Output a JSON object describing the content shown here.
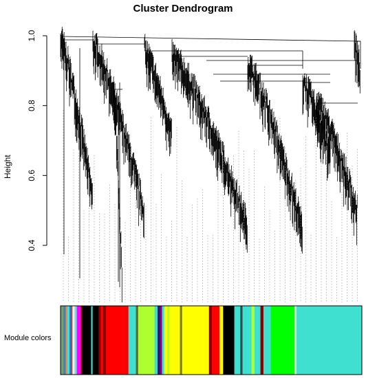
{
  "title": "Cluster Dendrogram",
  "y_axis": {
    "label": "Height",
    "range": [
      0.3,
      1.0
    ],
    "ticks": [
      {
        "value": 0.4,
        "label": "0.4"
      },
      {
        "value": 0.6,
        "label": "0.6"
      },
      {
        "value": 0.8,
        "label": "0.8"
      },
      {
        "value": 1.0,
        "label": "1.0"
      }
    ]
  },
  "color_bar": {
    "label": "Module colors",
    "segments": [
      {
        "color": "#8c8c8c",
        "width": 2
      },
      {
        "color": "#6aa84f",
        "width": 2
      },
      {
        "color": "#4682b4",
        "width": 3
      },
      {
        "color": "#ff7f50",
        "width": 2
      },
      {
        "color": "#40e0d0",
        "width": 3
      },
      {
        "color": "#4169e1",
        "width": 2
      },
      {
        "color": "#a0522d",
        "width": 2
      },
      {
        "color": "#ffffff",
        "width": 2
      },
      {
        "color": "#d3d3d3",
        "width": 2
      },
      {
        "color": "#40e0d0",
        "width": 2
      },
      {
        "color": "#ff00ff",
        "width": 5
      },
      {
        "color": "#8b0000",
        "width": 2
      },
      {
        "color": "#000000",
        "width": 12
      },
      {
        "color": "#40e0d0",
        "width": 2
      },
      {
        "color": "#000000",
        "width": 8
      },
      {
        "color": "#8b0000",
        "width": 3
      },
      {
        "color": "#ff0000",
        "width": 3
      },
      {
        "color": "#8b0000",
        "width": 4
      },
      {
        "color": "#ff0000",
        "width": 30
      },
      {
        "color": "#40e0d0",
        "width": 10
      },
      {
        "color": "#556b2f",
        "width": 3
      },
      {
        "color": "#adff2f",
        "width": 22
      },
      {
        "color": "#40e0d0",
        "width": 4
      },
      {
        "color": "#191970",
        "width": 3
      },
      {
        "color": "#800080",
        "width": 3
      },
      {
        "color": "#40e0d0",
        "width": 3
      },
      {
        "color": "#ffff00",
        "width": 4
      },
      {
        "color": "#adff2f",
        "width": 3
      },
      {
        "color": "#ffff00",
        "width": 14
      },
      {
        "color": "#808000",
        "width": 3
      },
      {
        "color": "#ffff00",
        "width": 36
      },
      {
        "color": "#8b0000",
        "width": 4
      },
      {
        "color": "#ff0000",
        "width": 10
      },
      {
        "color": "#ffff00",
        "width": 5
      },
      {
        "color": "#000000",
        "width": 15
      },
      {
        "color": "#40e0d0",
        "width": 8
      },
      {
        "color": "#2f4f4f",
        "width": 3
      },
      {
        "color": "#40e0d0",
        "width": 12
      },
      {
        "color": "#adff2f",
        "width": 4
      },
      {
        "color": "#40e0d0",
        "width": 8
      },
      {
        "color": "#8b0000",
        "width": 4
      },
      {
        "color": "#40e0d0",
        "width": 10
      },
      {
        "color": "#00ff00",
        "width": 32
      },
      {
        "color": "#ffffff",
        "width": 2
      },
      {
        "color": "#40e0d0",
        "width": 88
      }
    ]
  }
}
